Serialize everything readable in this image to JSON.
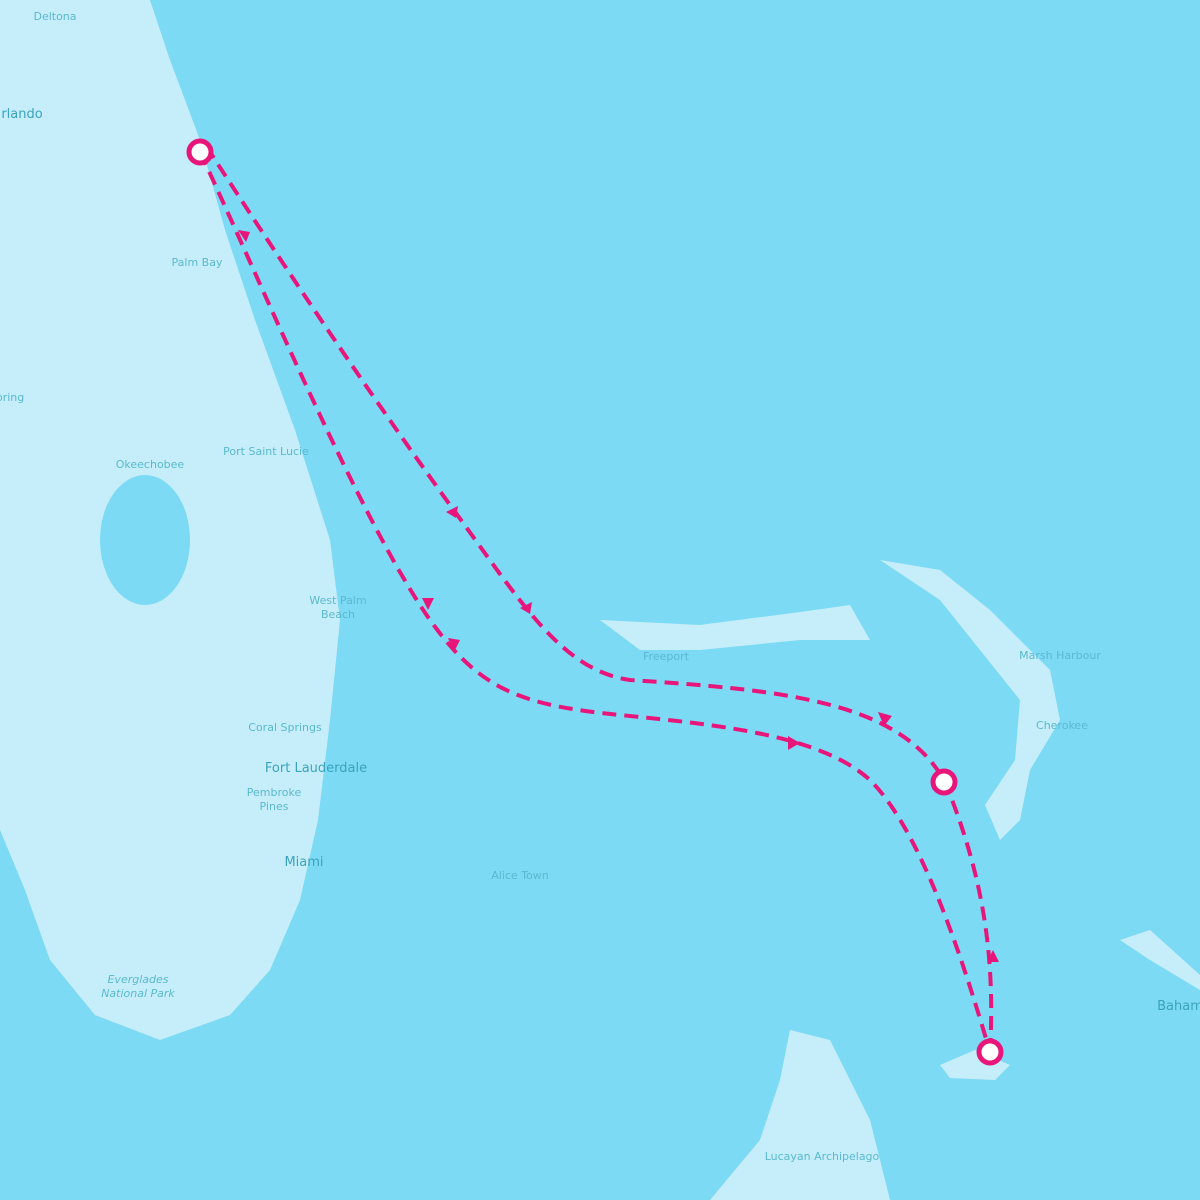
{
  "map": {
    "labels": [
      {
        "lines": [
          "Deltona"
        ]
      },
      {
        "lines": [
          "rlando"
        ]
      },
      {
        "lines": [
          "Palm Bay"
        ]
      },
      {
        "lines": [
          "pring"
        ]
      },
      {
        "lines": [
          "Okeechobee"
        ]
      },
      {
        "lines": [
          "Port Saint Lucie"
        ]
      },
      {
        "lines": [
          "West Palm",
          "Beach"
        ]
      },
      {
        "lines": [
          "Coral Springs"
        ]
      },
      {
        "lines": [
          "Fort Lauderdale"
        ]
      },
      {
        "lines": [
          "Pembroke",
          "Pines"
        ]
      },
      {
        "lines": [
          "Miami"
        ]
      },
      {
        "lines": [
          "Everglades",
          "National Park"
        ]
      },
      {
        "lines": [
          "Alice Town"
        ]
      },
      {
        "lines": [
          "Freeport"
        ]
      },
      {
        "lines": [
          "Marsh Harbour"
        ]
      },
      {
        "lines": [
          "Cherokee"
        ]
      },
      {
        "lines": [
          "Baham"
        ]
      },
      {
        "lines": [
          "Lucayan Archipelago"
        ]
      }
    ]
  }
}
